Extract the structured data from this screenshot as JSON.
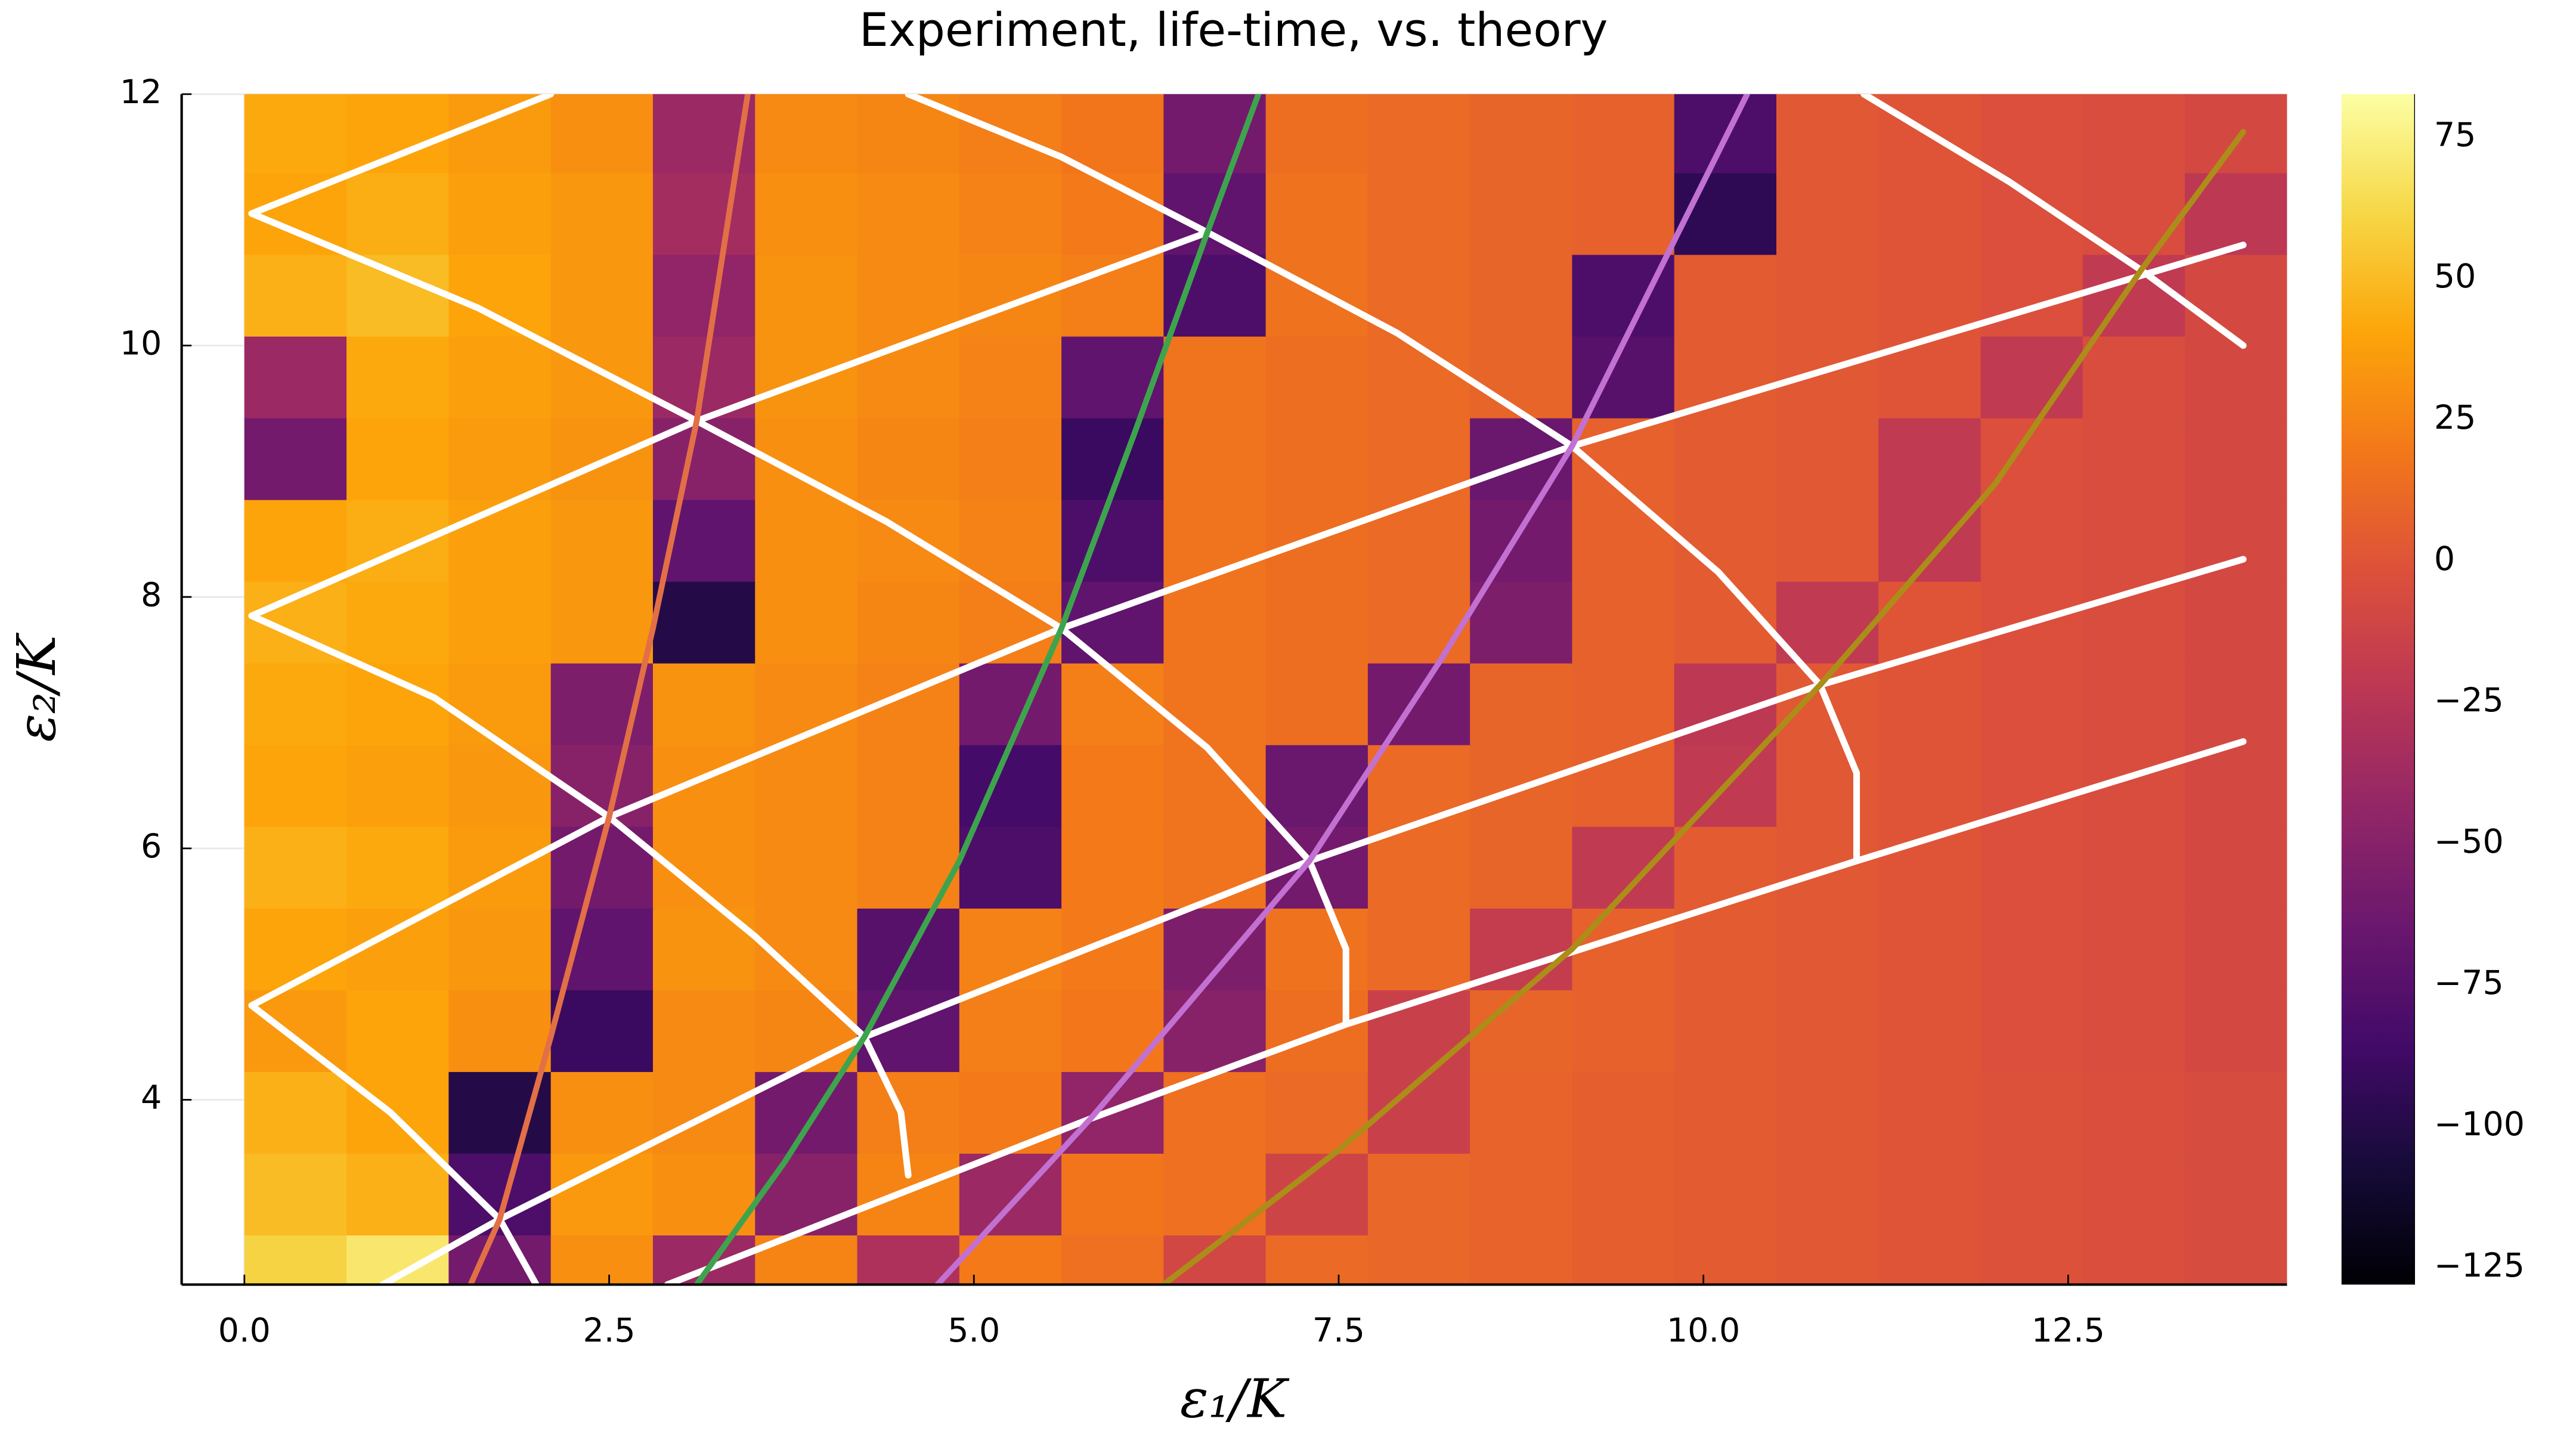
{
  "chart_data": {
    "type": "heatmap",
    "title": "Experiment, life-time, vs. theory",
    "xlabel": "ε₁/K",
    "ylabel": "ε₂/K",
    "colormap": "inferno",
    "grid": true,
    "xlim": [
      -0.43,
      14.0
    ],
    "ylim": [
      2.53,
      12
    ],
    "xticks": [
      {
        "value": 0,
        "label": "0.0"
      },
      2.5,
      {
        "value": 5,
        "label": "5.0"
      },
      7.5,
      {
        "value": 10,
        "label": "10.0"
      },
      12.5
    ],
    "yticks": [
      4,
      6,
      8,
      10,
      12
    ],
    "zlim": [
      -128,
      82.6
    ],
    "zticks": [
      {
        "value": -125,
        "label": "−125"
      },
      {
        "value": -100,
        "label": "−100"
      },
      {
        "value": -75,
        "label": "−75"
      },
      {
        "value": -50,
        "label": "−50"
      },
      {
        "value": -25,
        "label": "−25"
      },
      0,
      25,
      50,
      75
    ],
    "x": [
      0.35,
      1.05,
      1.75,
      2.45,
      3.15,
      3.85,
      4.55,
      5.25,
      5.95,
      6.65,
      7.35,
      8.05,
      8.75,
      9.45,
      10.15,
      10.85,
      11.55,
      12.25,
      12.95,
      13.65
    ],
    "y": [
      2.6,
      3.25,
      3.9,
      4.55,
      5.2,
      5.85,
      6.5,
      7.15,
      7.8,
      8.45,
      9.1,
      9.75,
      10.4,
      11.05,
      11.7
    ],
    "z": [
      [
        60,
        70,
        -60,
        30,
        -40,
        25,
        -30,
        20,
        15,
        -10,
        12,
        10,
        8,
        6,
        4,
        2,
        0,
        -2,
        -4,
        -6
      ],
      [
        50,
        45,
        -80,
        35,
        30,
        -50,
        25,
        -40,
        18,
        15,
        -12,
        10,
        8,
        6,
        4,
        2,
        0,
        -2,
        -4,
        -6
      ],
      [
        45,
        40,
        -100,
        30,
        28,
        -60,
        22,
        20,
        -45,
        15,
        12,
        -15,
        8,
        6,
        4,
        2,
        0,
        -2,
        -4,
        -6
      ],
      [
        35,
        40,
        30,
        -90,
        28,
        26,
        -70,
        22,
        19,
        -50,
        14,
        -15,
        9,
        7,
        4,
        2,
        0,
        -3,
        -5,
        -8
      ],
      [
        40,
        38,
        34,
        -70,
        32,
        28,
        -75,
        24,
        20,
        -55,
        16,
        12,
        -18,
        7,
        4,
        2,
        0,
        -3,
        -5,
        -8
      ],
      [
        45,
        42,
        36,
        -60,
        30,
        28,
        24,
        -80,
        20,
        17,
        -60,
        12,
        9,
        -20,
        4,
        2,
        0,
        -3,
        -5,
        -8
      ],
      [
        40,
        38,
        34,
        -50,
        30,
        28,
        24,
        -85,
        20,
        17,
        -65,
        12,
        9,
        7,
        -20,
        2,
        0,
        -3,
        -5,
        -8
      ],
      [
        42,
        40,
        36,
        -55,
        32,
        28,
        24,
        -60,
        22,
        17,
        14,
        -60,
        9,
        7,
        -22,
        2,
        0,
        -3,
        -5,
        -8
      ],
      [
        45,
        42,
        38,
        34,
        -100,
        30,
        26,
        22,
        -70,
        17,
        14,
        12,
        -55,
        7,
        4,
        -20,
        0,
        -3,
        -5,
        -8
      ],
      [
        40,
        44,
        38,
        34,
        -70,
        30,
        28,
        24,
        -80,
        17,
        14,
        12,
        -60,
        7,
        4,
        2,
        -20,
        -3,
        -5,
        -8
      ],
      [
        -60,
        40,
        36,
        32,
        -50,
        30,
        26,
        22,
        -90,
        17,
        14,
        12,
        -65,
        7,
        4,
        2,
        -20,
        -3,
        -5,
        -8
      ],
      [
        -40,
        42,
        38,
        34,
        -40,
        32,
        28,
        24,
        -70,
        17,
        14,
        12,
        9,
        -75,
        4,
        2,
        0,
        -20,
        -5,
        -8
      ],
      [
        45,
        50,
        40,
        34,
        -45,
        32,
        28,
        26,
        22,
        -80,
        16,
        12,
        9,
        -80,
        4,
        2,
        0,
        -3,
        -20,
        -8
      ],
      [
        40,
        44,
        38,
        34,
        -35,
        30,
        28,
        24,
        20,
        -70,
        16,
        12,
        9,
        7,
        -95,
        2,
        0,
        -3,
        -5,
        -22
      ],
      [
        42,
        40,
        36,
        30,
        -40,
        28,
        26,
        22,
        18,
        -60,
        14,
        12,
        9,
        7,
        -80,
        2,
        0,
        -3,
        -5,
        -8
      ]
    ],
    "lines": [
      {
        "color": "#ffffff",
        "x": [
          0.05,
          2.1
        ],
        "y": [
          11.05,
          12
        ]
      },
      {
        "color": "#ffffff",
        "x": [
          0.05,
          3.1,
          6.6
        ],
        "y": [
          7.85,
          9.4,
          10.9
        ]
      },
      {
        "color": "#ffffff",
        "x": [
          0.05,
          2.5,
          5.6,
          9.1,
          13.7
        ],
        "y": [
          4.75,
          6.25,
          7.75,
          9.2,
          10.8
        ]
      },
      {
        "color": "#ffffff",
        "x": [
          0.95,
          1.75,
          4.25,
          7.3,
          10.8,
          13.7
        ],
        "y": [
          2.53,
          3.05,
          4.5,
          5.9,
          7.3,
          8.3
        ]
      },
      {
        "color": "#ffffff",
        "x": [
          2.9,
          5.8,
          7.55,
          11.05,
          13.7
        ],
        "y": [
          2.53,
          3.85,
          4.6,
          5.9,
          6.85
        ]
      },
      {
        "color": "#ffffff",
        "x": [
          0.05,
          1.0,
          1.75,
          2.0
        ],
        "y": [
          4.75,
          3.9,
          3.05,
          2.53
        ]
      },
      {
        "color": "#ffffff",
        "x": [
          0.05,
          1.3,
          2.5,
          3.5,
          4.25,
          4.5,
          4.55
        ],
        "y": [
          7.85,
          7.2,
          6.25,
          5.3,
          4.5,
          3.9,
          3.4
        ]
      },
      {
        "color": "#ffffff",
        "x": [
          0.05,
          1.6,
          3.1,
          4.4,
          5.6,
          6.6,
          7.3,
          7.55,
          7.55
        ],
        "y": [
          11.05,
          10.3,
          9.4,
          8.6,
          7.75,
          6.8,
          5.9,
          5.2,
          4.6
        ]
      },
      {
        "color": "#ffffff",
        "x": [
          4.55,
          5.6,
          6.6,
          7.9,
          9.1,
          10.1,
          10.8,
          11.05,
          11.05
        ],
        "y": [
          12,
          11.5,
          10.9,
          10.1,
          9.2,
          8.2,
          7.3,
          6.6,
          5.9
        ]
      },
      {
        "color": "#ffffff",
        "x": [
          11.1,
          12.1,
          13.0,
          13.7
        ],
        "y": [
          12,
          11.3,
          10.6,
          10.0
        ]
      },
      {
        "color": "#e26f46",
        "x": [
          1.55,
          1.75,
          2.1,
          2.5,
          2.8,
          3.1,
          3.45
        ],
        "y": [
          2.53,
          3.05,
          4.5,
          6.25,
          7.75,
          9.4,
          12
        ]
      },
      {
        "color": "#3da44d",
        "x": [
          3.1,
          3.7,
          4.25,
          4.9,
          5.6,
          6.1,
          6.6,
          6.95
        ],
        "y": [
          2.53,
          3.5,
          4.5,
          5.9,
          7.75,
          9.3,
          10.9,
          12
        ]
      },
      {
        "color": "#c271d2",
        "x": [
          4.75,
          5.8,
          7.3,
          8.2,
          9.1,
          9.7,
          10.3
        ],
        "y": [
          2.53,
          3.85,
          5.9,
          7.5,
          9.2,
          10.6,
          12
        ]
      },
      {
        "color": "#ac8d18",
        "x": [
          6.3,
          7.5,
          9.1,
          10.8,
          12.0,
          13.0,
          13.7
        ],
        "y": [
          2.53,
          3.6,
          5.2,
          7.3,
          8.9,
          10.6,
          11.7
        ]
      }
    ]
  }
}
